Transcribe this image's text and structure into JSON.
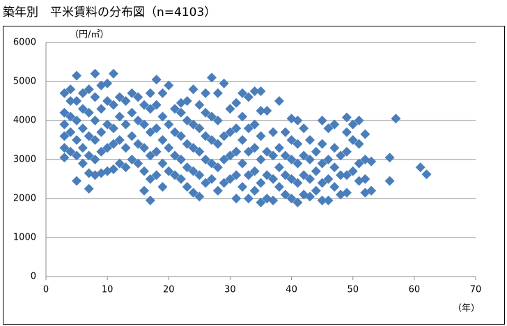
{
  "chart_data": {
    "type": "scatter",
    "title": "築年別　平米賃料の分布図（n=4103）",
    "y_label": "（円/㎡）",
    "x_label": "（年）",
    "xlim": [
      0,
      70
    ],
    "xticks": [
      0,
      10,
      20,
      30,
      40,
      50,
      60,
      70
    ],
    "ylim": [
      0,
      6000
    ],
    "yticks": [
      0,
      1000,
      2000,
      3000,
      4000,
      5000,
      6000
    ],
    "grid": true,
    "color": "#4a7ebb",
    "x": [
      3,
      3,
      3,
      3,
      3,
      3,
      4,
      4,
      4,
      4,
      4,
      5,
      5,
      5,
      5,
      5,
      5,
      6,
      6,
      6,
      6,
      6,
      7,
      7,
      7,
      7,
      7,
      7,
      8,
      8,
      8,
      8,
      8,
      8,
      9,
      9,
      9,
      9,
      9,
      10,
      10,
      10,
      10,
      10,
      11,
      11,
      11,
      11,
      11,
      12,
      12,
      12,
      12,
      13,
      13,
      13,
      13,
      14,
      14,
      14,
      14,
      15,
      15,
      15,
      15,
      16,
      16,
      16,
      16,
      16,
      17,
      17,
      17,
      17,
      17,
      17,
      18,
      18,
      18,
      18,
      18,
      19,
      19,
      19,
      19,
      19,
      20,
      20,
      20,
      20,
      21,
      21,
      21,
      21,
      22,
      22,
      22,
      22,
      22,
      23,
      23,
      23,
      23,
      23,
      24,
      24,
      24,
      24,
      24,
      25,
      25,
      25,
      25,
      25,
      26,
      26,
      26,
      26,
      26,
      27,
      27,
      27,
      27,
      27,
      28,
      28,
      28,
      28,
      28,
      29,
      29,
      29,
      29,
      30,
      30,
      30,
      30,
      31,
      31,
      31,
      31,
      31,
      32,
      32,
      32,
      32,
      32,
      33,
      33,
      33,
      33,
      33,
      34,
      34,
      34,
      34,
      34,
      35,
      35,
      35,
      35,
      35,
      35,
      36,
      36,
      36,
      36,
      37,
      37,
      37,
      37,
      38,
      38,
      38,
      38,
      39,
      39,
      39,
      39,
      40,
      40,
      40,
      40,
      40,
      41,
      41,
      41,
      41,
      41,
      42,
      42,
      42,
      42,
      43,
      43,
      43,
      43,
      44,
      44,
      44,
      45,
      45,
      45,
      45,
      45,
      46,
      46,
      46,
      46,
      47,
      47,
      47,
      47,
      48,
      48,
      48,
      49,
      49,
      49,
      49,
      49,
      50,
      50,
      50,
      51,
      51,
      51,
      51,
      52,
      52,
      52,
      52,
      53,
      53,
      56,
      56,
      57,
      61,
      62
    ],
    "values": [
      3050,
      3300,
      3600,
      3900,
      4200,
      4700,
      3200,
      3700,
      4100,
      4500,
      4800,
      2450,
      3100,
      3500,
      4000,
      4500,
      5150,
      2900,
      3300,
      3800,
      4300,
      4700,
      2250,
      2650,
      3100,
      3600,
      4200,
      4800,
      2600,
      3000,
      3500,
      4000,
      4600,
      5200,
      2650,
      3200,
      3700,
      4300,
      4900,
      2700,
      3300,
      3900,
      4500,
      4950,
      2750,
      3400,
      3800,
      4400,
      5200,
      2900,
      3500,
      4100,
      4600,
      2800,
      3300,
      3900,
      4500,
      3000,
      3600,
      4200,
      4700,
      2900,
      3400,
      4000,
      4600,
      2200,
      2700,
      3300,
      3900,
      4400,
      1950,
      2500,
      3100,
      3700,
      4300,
      4700,
      2600,
      3200,
      3800,
      4400,
      5050,
      2300,
      2900,
      3500,
      4100,
      4700,
      2700,
      3300,
      3900,
      4900,
      2600,
      3100,
      3700,
      4300,
      2500,
      3000,
      3600,
      4200,
      4450,
      2300,
      2800,
      3400,
      4000,
      4500,
      2150,
      2700,
      3300,
      3900,
      4800,
      2050,
      2600,
      3200,
      3800,
      4400,
      2400,
      3000,
      3600,
      4200,
      4700,
      2500,
      2900,
      3500,
      4100,
      5100,
      2200,
      2800,
      3400,
      4000,
      4700,
      2400,
      3000,
      3600,
      4950,
      2500,
      3100,
      3700,
      4300,
      2000,
      2600,
      3200,
      3800,
      4450,
      2300,
      2900,
      3500,
      4100,
      4700,
      2000,
      2600,
      3200,
      3800,
      4600,
      2200,
      2700,
      3300,
      3900,
      4750,
      1900,
      2400,
      3000,
      3600,
      4250,
      4750,
      2000,
      2600,
      3200,
      4250,
      1950,
      2500,
      3100,
      3700,
      2300,
      2800,
      3300,
      4500,
      2100,
      2600,
      3100,
      3700,
      2000,
      2500,
      3000,
      3500,
      4050,
      1900,
      2400,
      2900,
      3400,
      4000,
      2100,
      2600,
      3100,
      3800,
      2050,
      2500,
      3000,
      3500,
      2200,
      2700,
      3200,
      1950,
      2400,
      2900,
      3400,
      4000,
      1950,
      2500,
      3000,
      3800,
      2300,
      2800,
      3300,
      3900,
      2100,
      2600,
      3100,
      2150,
      2600,
      3200,
      3700,
      4080,
      2700,
      3500,
      3900,
      2450,
      2900,
      3400,
      4000,
      2150,
      2500,
      3000,
      3650,
      2200,
      2950,
      2450,
      3050,
      4050,
      2800,
      2620
    ]
  }
}
